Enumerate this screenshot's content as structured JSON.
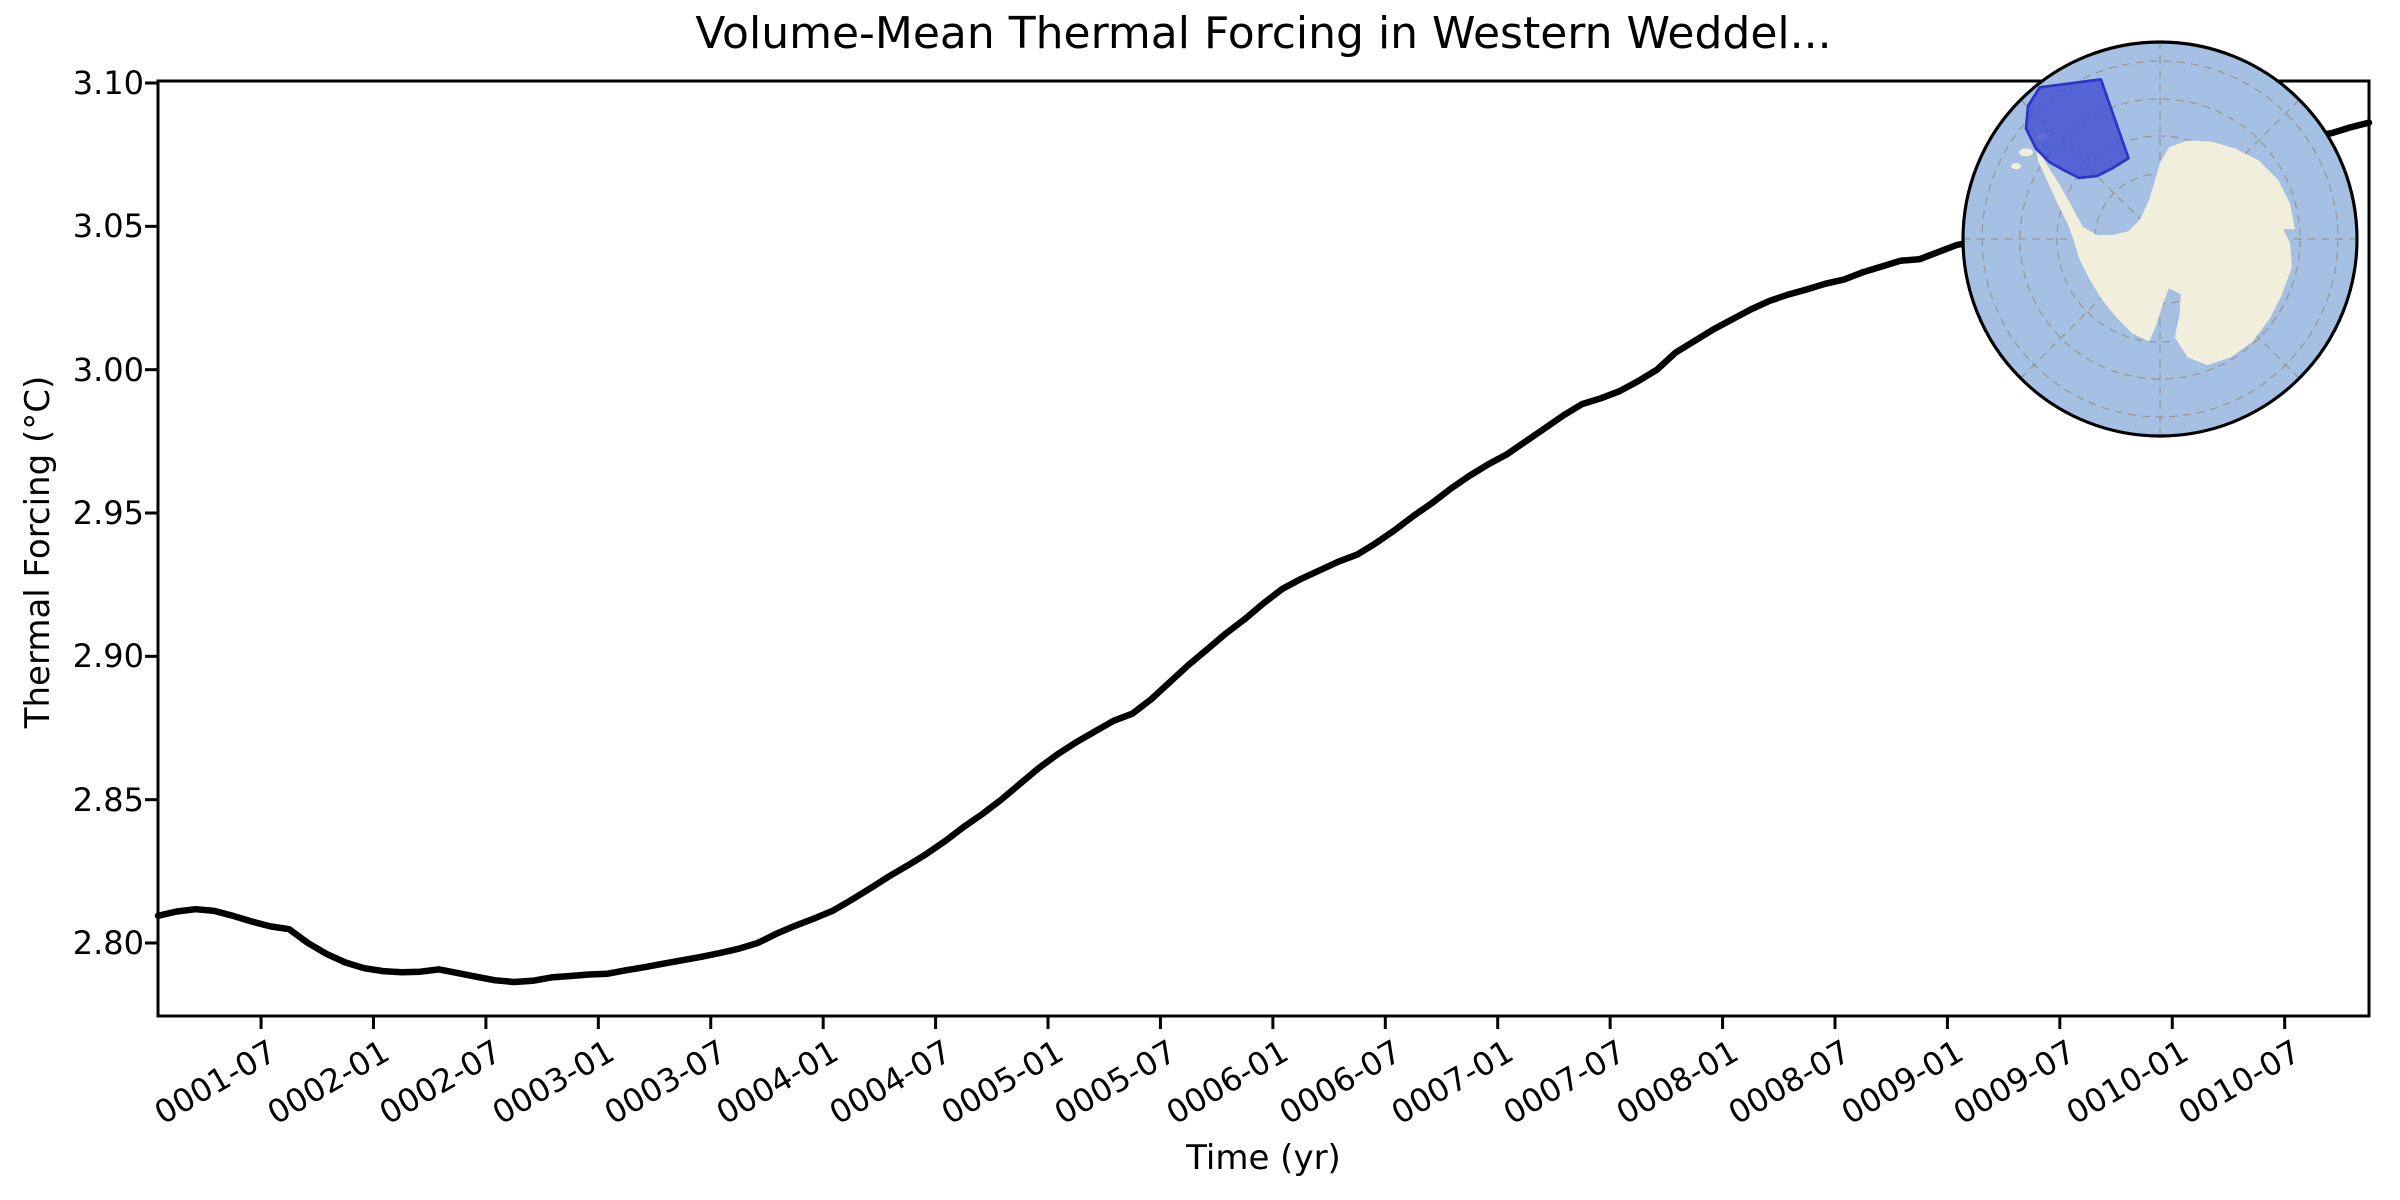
{
  "chart_data": {
    "type": "line",
    "title": "Volume-Mean Thermal Forcing in Western Weddel...",
    "xlabel": "Time (yr)",
    "ylabel": "Thermal Forcing (°C)",
    "x_tick_labels": [
      "0001-07",
      "0002-01",
      "0002-07",
      "0003-01",
      "0003-07",
      "0004-01",
      "0004-07",
      "0005-01",
      "0005-07",
      "0006-01",
      "0006-07",
      "0007-01",
      "0007-07",
      "0008-01",
      "0008-07",
      "0009-01",
      "0009-07",
      "0010-01",
      "0010-07"
    ],
    "y_tick_labels": [
      "2.80",
      "2.85",
      "2.90",
      "2.95",
      "3.00",
      "3.05",
      "3.10"
    ],
    "y_tick_values": [
      2.8,
      2.85,
      2.9,
      2.95,
      3.0,
      3.05,
      3.1
    ],
    "ylim": [
      2.7745,
      3.1007
    ],
    "grid": false,
    "legend": "none",
    "series": [
      {
        "name": "volume-mean thermal forcing",
        "color": "#000000",
        "months": [
          "0001-01",
          "0001-02",
          "0001-03",
          "0001-04",
          "0001-05",
          "0001-06",
          "0001-07",
          "0001-08",
          "0001-09",
          "0001-10",
          "0001-11",
          "0001-12",
          "0002-01",
          "0002-02",
          "0002-03",
          "0002-04",
          "0002-05",
          "0002-06",
          "0002-07",
          "0002-08",
          "0002-09",
          "0002-10",
          "0002-11",
          "0002-12",
          "0003-01",
          "0003-02",
          "0003-03",
          "0003-04",
          "0003-05",
          "0003-06",
          "0003-07",
          "0003-08",
          "0003-09",
          "0003-10",
          "0003-11",
          "0003-12",
          "0004-01",
          "0004-02",
          "0004-03",
          "0004-04",
          "0004-05",
          "0004-06",
          "0004-07",
          "0004-08",
          "0004-09",
          "0004-10",
          "0004-11",
          "0004-12",
          "0005-01",
          "0005-02",
          "0005-03",
          "0005-04",
          "0005-05",
          "0005-06",
          "0005-07",
          "0005-08",
          "0005-09",
          "0005-10",
          "0005-11",
          "0005-12",
          "0006-01",
          "0006-02",
          "0006-03",
          "0006-04",
          "0006-05",
          "0006-06",
          "0006-07",
          "0006-08",
          "0006-09",
          "0006-10",
          "0006-11",
          "0006-12",
          "0007-01",
          "0007-02",
          "0007-03",
          "0007-04",
          "0007-05",
          "0007-06",
          "0007-07",
          "0007-08",
          "0007-09",
          "0007-10",
          "0007-11",
          "0007-12",
          "0008-01",
          "0008-02",
          "0008-03",
          "0008-04",
          "0008-05",
          "0008-06",
          "0008-07",
          "0008-08",
          "0008-09",
          "0008-10",
          "0008-11",
          "0008-12",
          "0009-01",
          "0009-02",
          "0009-03",
          "0009-04",
          "0009-05",
          "0009-06",
          "0009-07",
          "0009-08",
          "0009-09",
          "0009-10",
          "0009-11",
          "0009-12",
          "0010-01",
          "0010-02",
          "0010-03",
          "0010-04",
          "0010-05",
          "0010-06",
          "0010-07",
          "0010-08",
          "0010-09",
          "0010-10",
          "0010-11"
        ],
        "values": [
          2.8095,
          2.811,
          2.8118,
          2.8112,
          2.8095,
          2.8075,
          2.8058,
          2.8048,
          2.8,
          2.7962,
          2.7932,
          2.7912,
          2.7902,
          2.7898,
          2.79,
          2.7908,
          2.7895,
          2.7882,
          2.787,
          2.7864,
          2.7868,
          2.788,
          2.7885,
          2.789,
          2.7893,
          2.7905,
          2.7916,
          2.7928,
          2.794,
          2.7952,
          2.7965,
          2.798,
          2.8,
          2.8032,
          2.806,
          2.8085,
          2.8112,
          2.815,
          2.819,
          2.8232,
          2.827,
          2.831,
          2.8355,
          2.8405,
          2.845,
          2.85,
          2.8555,
          2.861,
          2.8658,
          2.87,
          2.8738,
          2.8775,
          2.88,
          2.885,
          2.891,
          2.897,
          2.9025,
          2.908,
          2.913,
          2.9185,
          2.9235,
          2.927,
          2.93,
          2.933,
          2.9355,
          2.9395,
          2.944,
          2.949,
          2.9535,
          2.9585,
          2.963,
          2.967,
          2.9705,
          2.975,
          2.9795,
          2.984,
          2.988,
          2.99,
          2.9925,
          2.996,
          3.0,
          3.006,
          3.01,
          3.014,
          3.0175,
          3.021,
          3.024,
          3.0262,
          3.028,
          3.03,
          3.0315,
          3.034,
          3.036,
          3.038,
          3.0385,
          3.041,
          3.0435,
          3.0448,
          3.0465,
          3.0505,
          3.054,
          3.056,
          3.058,
          3.06,
          3.062,
          3.0645,
          3.067,
          3.069,
          3.0705,
          3.072,
          3.074,
          3.076,
          3.0775,
          3.079,
          3.0805,
          3.0815,
          3.0825,
          3.0845,
          3.0862
        ]
      }
    ],
    "inset": {
      "name": "antarctica-locator-map",
      "description": "South polar stereographic locator globe with highlighted Western Weddell region",
      "colors": {
        "ocean": "#a5c0e2",
        "land": "#f1efdb",
        "region_fill": "#3f4ad0",
        "region_edge": "#2e34c8",
        "graticule": "#969696",
        "edge": "#000000"
      }
    }
  }
}
